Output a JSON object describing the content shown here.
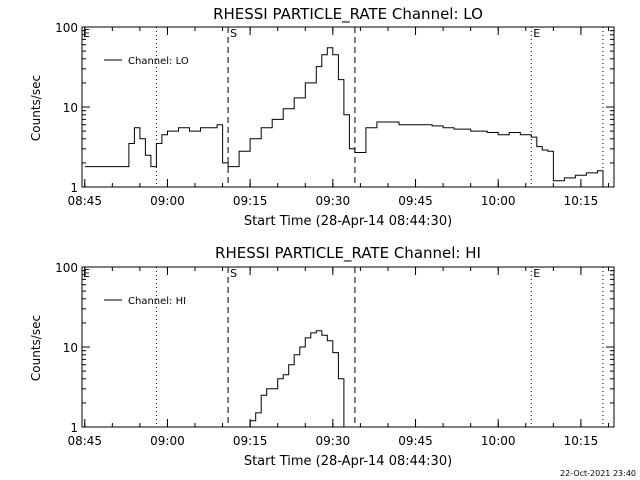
{
  "footer": {
    "timestamp": "22-Oct-2021 23:40"
  },
  "chart_data": [
    {
      "type": "line",
      "title": "RHESSI PARTICLE_RATE Channel: LO",
      "xlabel": "Start Time (28-Apr-14 08:44:30)",
      "ylabel": "Counts/sec",
      "yscale": "log",
      "ylim": [
        1,
        100
      ],
      "xlim": [
        "08:44:30",
        "10:21:00"
      ],
      "x_tick_labels": [
        "08:45",
        "09:00",
        "09:15",
        "09:30",
        "09:45",
        "10:00",
        "10:15"
      ],
      "y_tick_labels": [
        "1",
        "10",
        "100"
      ],
      "grid": false,
      "legend": {
        "position": "top-left",
        "entries": [
          "Channel: LO"
        ]
      },
      "markers": [
        {
          "time": "09:11",
          "style": "dashed",
          "label": "S"
        },
        {
          "time": "09:34",
          "style": "dashed",
          "label": ""
        },
        {
          "time": "08:58",
          "style": "dotted",
          "label": ""
        },
        {
          "time": "10:06",
          "style": "dotted",
          "label": "E"
        },
        {
          "time": "10:19",
          "style": "dotted",
          "label": ""
        }
      ],
      "corner_labels": [
        "E"
      ],
      "series": [
        {
          "name": "Channel: LO",
          "x": [
            "08:45",
            "08:47",
            "08:50",
            "08:52",
            "08:53",
            "08:54",
            "08:55",
            "08:56",
            "08:57",
            "08:58",
            "08:59",
            "09:00",
            "09:02",
            "09:04",
            "09:06",
            "09:08",
            "09:09",
            "09:10",
            "09:11",
            "09:12",
            "09:13",
            "09:15",
            "09:17",
            "09:19",
            "09:21",
            "09:23",
            "09:25",
            "09:27",
            "09:28",
            "09:29",
            "09:30",
            "09:31",
            "09:32",
            "09:33",
            "09:34",
            "09:35",
            "09:36",
            "09:38",
            "09:40",
            "09:42",
            "09:45",
            "09:48",
            "09:50",
            "09:52",
            "09:55",
            "09:58",
            "10:00",
            "10:02",
            "10:04",
            "10:06",
            "10:07",
            "10:08",
            "10:09",
            "10:10",
            "10:12",
            "10:14",
            "10:16",
            "10:18",
            "10:19"
          ],
          "y": [
            1.8,
            1.8,
            1.8,
            1.8,
            3.5,
            5.5,
            4.0,
            2.5,
            1.8,
            3.5,
            4.5,
            5.0,
            5.5,
            5.0,
            5.5,
            5.5,
            6.0,
            2.0,
            1.8,
            1.8,
            2.8,
            4.0,
            5.5,
            7.0,
            9.5,
            13,
            20,
            32,
            45,
            55,
            45,
            22,
            8,
            3,
            2.7,
            2.7,
            5.5,
            6.5,
            6.5,
            6.0,
            6.0,
            5.8,
            5.5,
            5.3,
            5.0,
            4.8,
            4.5,
            4.8,
            4.5,
            4.2,
            3.2,
            2.9,
            2.8,
            1.2,
            1.3,
            1.4,
            1.5,
            1.6,
            1.0
          ]
        }
      ]
    },
    {
      "type": "line",
      "title": "RHESSI PARTICLE_RATE Channel: HI",
      "xlabel": "Start Time (28-Apr-14 08:44:30)",
      "ylabel": "Counts/sec",
      "yscale": "log",
      "ylim": [
        1,
        100
      ],
      "xlim": [
        "08:44:30",
        "10:21:00"
      ],
      "x_tick_labels": [
        "08:45",
        "09:00",
        "09:15",
        "09:30",
        "09:45",
        "10:00",
        "10:15"
      ],
      "y_tick_labels": [
        "1",
        "10",
        "100"
      ],
      "grid": false,
      "legend": {
        "position": "top-left",
        "entries": [
          "Channel: HI"
        ]
      },
      "markers": [
        {
          "time": "09:11",
          "style": "dashed",
          "label": "S"
        },
        {
          "time": "09:34",
          "style": "dashed",
          "label": ""
        },
        {
          "time": "08:58",
          "style": "dotted",
          "label": ""
        },
        {
          "time": "10:06",
          "style": "dotted",
          "label": "E"
        },
        {
          "time": "10:19",
          "style": "dotted",
          "label": ""
        }
      ],
      "corner_labels": [
        "E"
      ],
      "series": [
        {
          "name": "Channel: HI",
          "x": [
            "09:14",
            "09:15",
            "09:16",
            "09:17",
            "09:18",
            "09:19",
            "09:20",
            "09:21",
            "09:22",
            "09:23",
            "09:24",
            "09:25",
            "09:26",
            "09:27",
            "09:28",
            "09:29",
            "09:30",
            "09:31",
            "09:32"
          ],
          "y": [
            1.0,
            1.2,
            1.5,
            2.5,
            3.0,
            3.0,
            4.0,
            4.5,
            6.0,
            8.0,
            10,
            13,
            15,
            16,
            14,
            12,
            8.5,
            4.0,
            1.0
          ]
        }
      ]
    }
  ]
}
